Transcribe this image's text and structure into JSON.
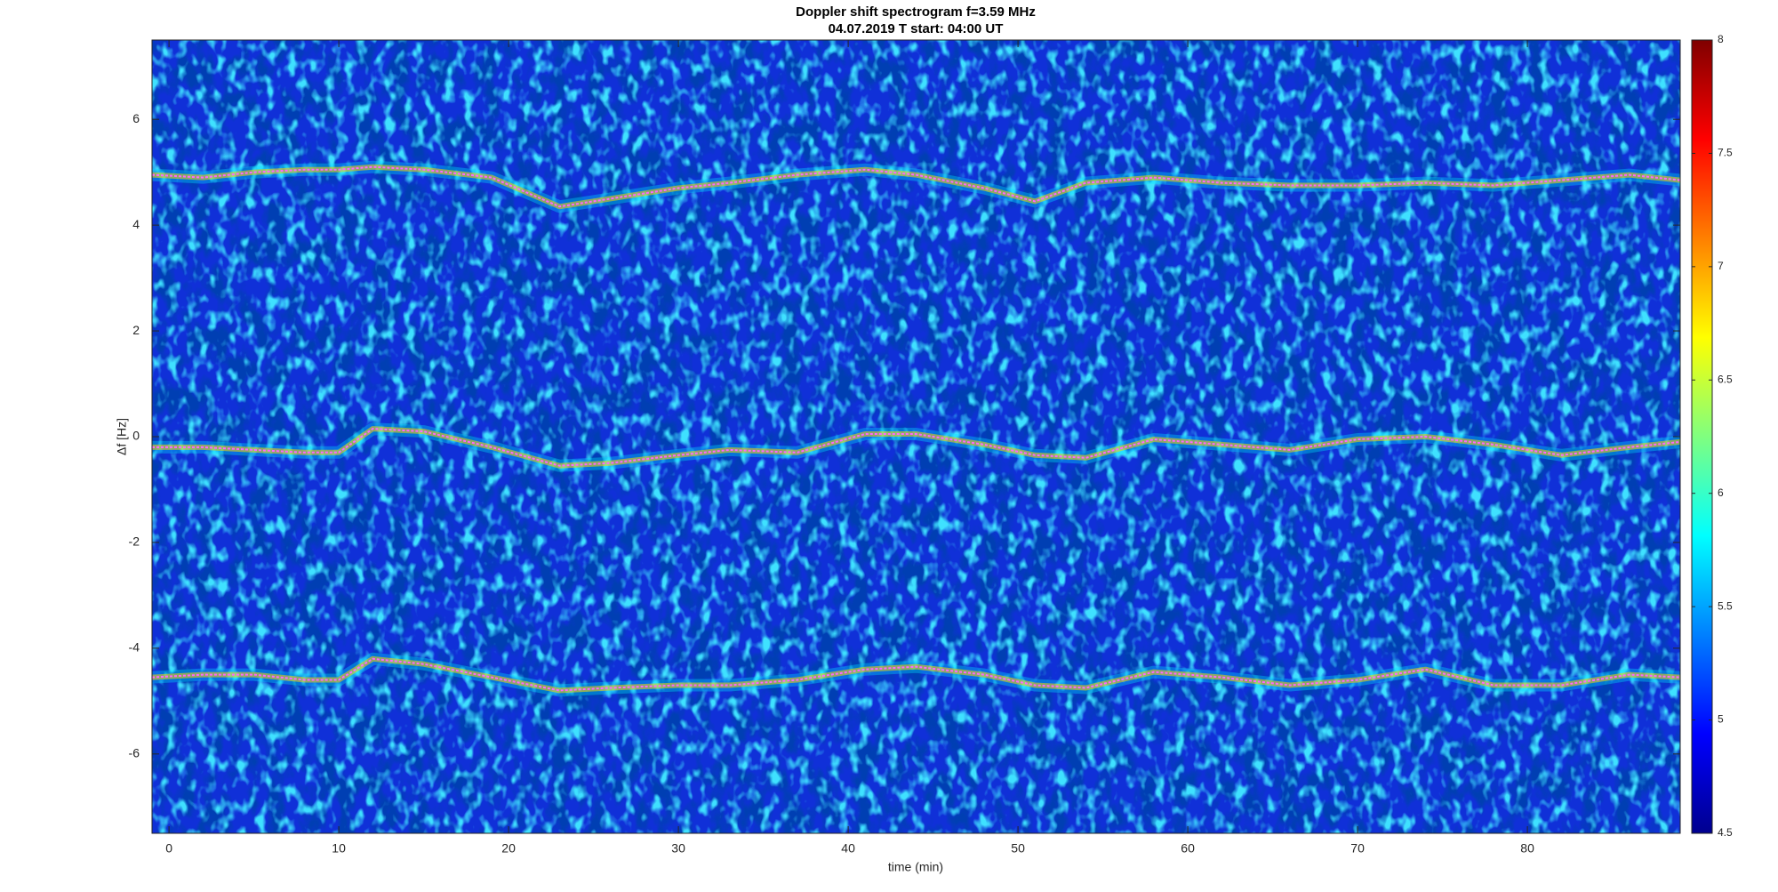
{
  "chart_data": {
    "type": "spectrogram",
    "title": "Doppler shift spectrogram f=3.59 MHz",
    "subtitle": "04.07.2019   T start: 04:00 UT",
    "xlabel": "time (min)",
    "ylabel": "Δf [Hz]",
    "xlim": [
      -1,
      89
    ],
    "ylim": [
      -7.5,
      7.5
    ],
    "xticks": [
      0,
      10,
      20,
      30,
      40,
      50,
      60,
      70,
      80
    ],
    "yticks": [
      -6,
      -4,
      -2,
      0,
      2,
      4,
      6
    ],
    "colormap": "jet",
    "clim": [
      4.5,
      8
    ],
    "cticks": [
      4.5,
      5,
      5.5,
      6,
      6.5,
      7,
      7.5,
      8
    ],
    "x": [
      -1,
      2,
      5,
      8,
      10,
      12,
      15,
      19,
      23,
      26,
      30,
      33,
      37,
      41,
      44,
      48,
      51,
      54,
      58,
      62,
      66,
      70,
      74,
      78,
      82,
      86,
      89
    ],
    "series": [
      {
        "color": "#ff66ff",
        "values": [
          4.95,
          4.9,
          5.0,
          5.05,
          5.05,
          5.1,
          5.05,
          4.9,
          4.35,
          4.5,
          4.7,
          4.8,
          4.95,
          5.05,
          4.95,
          4.7,
          4.45,
          4.8,
          4.9,
          4.8,
          4.75,
          4.75,
          4.8,
          4.75,
          4.85,
          4.95,
          4.85
        ]
      },
      {
        "color": "#ff66ff",
        "values": [
          -0.2,
          -0.2,
          -0.25,
          -0.3,
          -0.3,
          0.15,
          0.1,
          -0.2,
          -0.55,
          -0.5,
          -0.35,
          -0.25,
          -0.3,
          0.05,
          0.05,
          -0.15,
          -0.35,
          -0.4,
          -0.05,
          -0.15,
          -0.25,
          -0.05,
          0,
          -0.15,
          -0.35,
          -0.2,
          -0.1
        ]
      },
      {
        "color": "#ff66ff",
        "values": [
          -4.55,
          -4.5,
          -4.5,
          -4.6,
          -4.6,
          -4.2,
          -4.3,
          -4.55,
          -4.8,
          -4.75,
          -4.7,
          -4.7,
          -4.6,
          -4.4,
          -4.35,
          -4.5,
          -4.7,
          -4.75,
          -4.45,
          -4.55,
          -4.7,
          -4.6,
          -4.4,
          -4.7,
          -4.7,
          -4.5,
          -4.55
        ]
      }
    ]
  }
}
